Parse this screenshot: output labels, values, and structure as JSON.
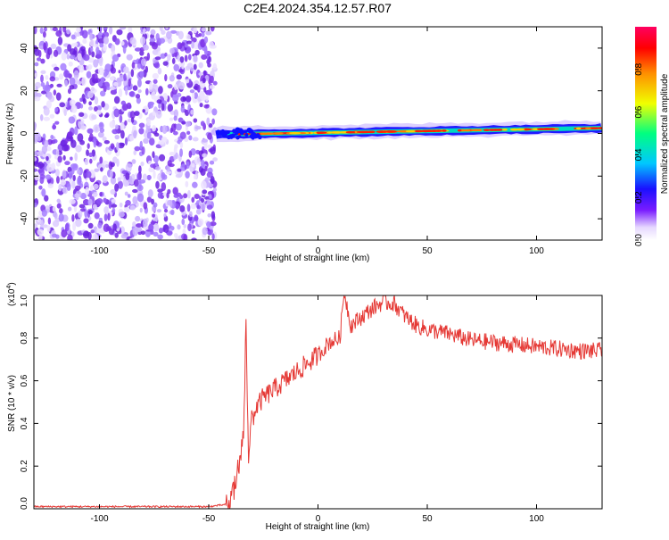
{
  "title": "C2E4.2024.354.12.57.R07",
  "colors": {
    "snr_line": "#e53935",
    "colormap": [
      "#ffffff",
      "#e6d8ff",
      "#7a1cff",
      "#1a10ff",
      "#00c8ff",
      "#00ff80",
      "#f0ff00",
      "#ff9000",
      "#ff0000",
      "#ff0060"
    ]
  },
  "chart_data": [
    {
      "type": "heatmap",
      "title": "C2E4.2024.354.12.57.R07",
      "xlabel": "Height of straight line (km)",
      "ylabel": "Frequency (Hz)",
      "xlim": [
        -130,
        130
      ],
      "ylim": [
        -50,
        50
      ],
      "x_ticks": [
        -100,
        -50,
        0,
        50,
        100
      ],
      "y_ticks": [
        -40,
        -20,
        0,
        20,
        40
      ],
      "noise_region_x": [
        -130,
        -47
      ],
      "signal_start_x": -47,
      "signal_band_hz": [
        -2,
        4
      ],
      "colorbar": {
        "label": "Normalized spectral amplitude",
        "range": [
          0.0,
          1.0
        ],
        "ticks": [
          "0.0",
          "0.2",
          "0.4",
          "0.6",
          "0.8"
        ]
      }
    },
    {
      "type": "line",
      "xlabel": "Height of straight line (km)",
      "ylabel": "SNR (10 * v/v)",
      "y_multiplier": "(x10",
      "y_multiplier_exp": "4",
      "y_multiplier_close": ")",
      "xlim": [
        -130,
        130
      ],
      "ylim": [
        0.0,
        1.0
      ],
      "x_ticks": [
        -100,
        -50,
        0,
        50,
        100
      ],
      "y_ticks": [
        "0.0",
        "0.2",
        "0.4",
        "0.6",
        "0.8",
        "1.0"
      ],
      "series": [
        {
          "x": [
            -130,
            -110,
            -90,
            -70,
            -50,
            -42,
            -40,
            -38,
            -36,
            -34,
            -33,
            -32,
            -30,
            -28,
            -25,
            -20,
            -15,
            -10,
            -5,
            0,
            5,
            10,
            12,
            15,
            20,
            25,
            30,
            35,
            40,
            45,
            50,
            60,
            70,
            80,
            90,
            100,
            110,
            120,
            130
          ],
          "y": [
            0.01,
            0.01,
            0.01,
            0.01,
            0.01,
            0.02,
            0.05,
            0.12,
            0.22,
            0.35,
            0.88,
            0.38,
            0.42,
            0.48,
            0.52,
            0.56,
            0.6,
            0.64,
            0.68,
            0.72,
            0.78,
            0.8,
            1.02,
            0.86,
            0.9,
            0.94,
            0.97,
            0.96,
            0.9,
            0.86,
            0.84,
            0.82,
            0.79,
            0.78,
            0.77,
            0.76,
            0.75,
            0.74,
            0.74
          ]
        }
      ]
    }
  ]
}
